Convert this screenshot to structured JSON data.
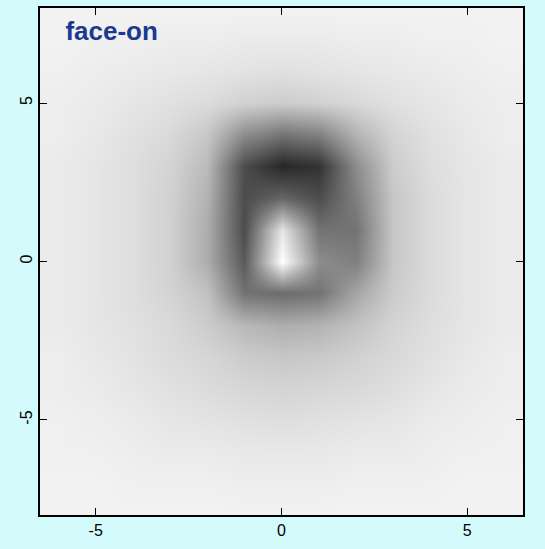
{
  "chart_data": {
    "type": "heatmap",
    "title": "face-on",
    "x": [
      -6,
      -5,
      -4,
      -3,
      -2,
      -1,
      0,
      1,
      2,
      3,
      4,
      5,
      6
    ],
    "y": [
      -8,
      -7,
      -6,
      -5,
      -4,
      -3,
      -2,
      -1,
      0,
      1,
      2,
      3,
      4,
      5,
      6,
      7,
      8
    ],
    "z": [
      [
        0.95,
        0.95,
        0.95,
        0.95,
        0.95,
        0.95,
        0.95,
        0.95,
        0.95,
        0.95,
        0.95,
        0.95,
        0.95
      ],
      [
        0.95,
        0.95,
        0.94,
        0.94,
        0.94,
        0.93,
        0.93,
        0.93,
        0.94,
        0.94,
        0.94,
        0.95,
        0.95
      ],
      [
        0.94,
        0.94,
        0.93,
        0.92,
        0.92,
        0.91,
        0.91,
        0.91,
        0.92,
        0.92,
        0.93,
        0.94,
        0.94
      ],
      [
        0.94,
        0.93,
        0.92,
        0.9,
        0.89,
        0.88,
        0.87,
        0.88,
        0.89,
        0.9,
        0.92,
        0.93,
        0.94
      ],
      [
        0.93,
        0.92,
        0.9,
        0.88,
        0.86,
        0.84,
        0.83,
        0.84,
        0.85,
        0.87,
        0.9,
        0.92,
        0.93
      ],
      [
        0.93,
        0.91,
        0.89,
        0.86,
        0.84,
        0.8,
        0.78,
        0.79,
        0.82,
        0.85,
        0.88,
        0.91,
        0.93
      ],
      [
        0.92,
        0.9,
        0.88,
        0.85,
        0.8,
        0.72,
        0.68,
        0.7,
        0.76,
        0.83,
        0.87,
        0.9,
        0.92
      ],
      [
        0.92,
        0.9,
        0.87,
        0.83,
        0.76,
        0.45,
        0.42,
        0.45,
        0.65,
        0.8,
        0.86,
        0.9,
        0.92
      ],
      [
        0.92,
        0.9,
        0.87,
        0.82,
        0.68,
        0.35,
        1.0,
        0.55,
        0.5,
        0.78,
        0.86,
        0.9,
        0.92
      ],
      [
        0.92,
        0.9,
        0.87,
        0.82,
        0.68,
        0.3,
        0.9,
        0.45,
        0.45,
        0.78,
        0.86,
        0.9,
        0.92
      ],
      [
        0.92,
        0.9,
        0.87,
        0.82,
        0.7,
        0.3,
        0.4,
        0.3,
        0.5,
        0.78,
        0.86,
        0.9,
        0.92
      ],
      [
        0.92,
        0.9,
        0.87,
        0.83,
        0.73,
        0.3,
        0.15,
        0.2,
        0.55,
        0.8,
        0.87,
        0.9,
        0.92
      ],
      [
        0.93,
        0.91,
        0.88,
        0.85,
        0.78,
        0.55,
        0.45,
        0.5,
        0.7,
        0.83,
        0.88,
        0.91,
        0.93
      ],
      [
        0.93,
        0.92,
        0.9,
        0.88,
        0.86,
        0.82,
        0.8,
        0.82,
        0.85,
        0.88,
        0.9,
        0.92,
        0.93
      ],
      [
        0.94,
        0.93,
        0.92,
        0.91,
        0.9,
        0.89,
        0.88,
        0.89,
        0.9,
        0.91,
        0.92,
        0.93,
        0.94
      ],
      [
        0.95,
        0.94,
        0.94,
        0.93,
        0.93,
        0.92,
        0.92,
        0.92,
        0.93,
        0.93,
        0.94,
        0.94,
        0.95
      ],
      [
        0.95,
        0.95,
        0.95,
        0.95,
        0.95,
        0.95,
        0.95,
        0.95,
        0.95,
        0.95,
        0.95,
        0.95,
        0.95
      ]
    ],
    "zlim": [
      0,
      1
    ],
    "xlim": [
      -6.5,
      6.5
    ],
    "ylim": [
      -8,
      8
    ],
    "xticks": [
      -5,
      0,
      5
    ],
    "yticks": [
      -5,
      0,
      5
    ],
    "grid": false
  }
}
